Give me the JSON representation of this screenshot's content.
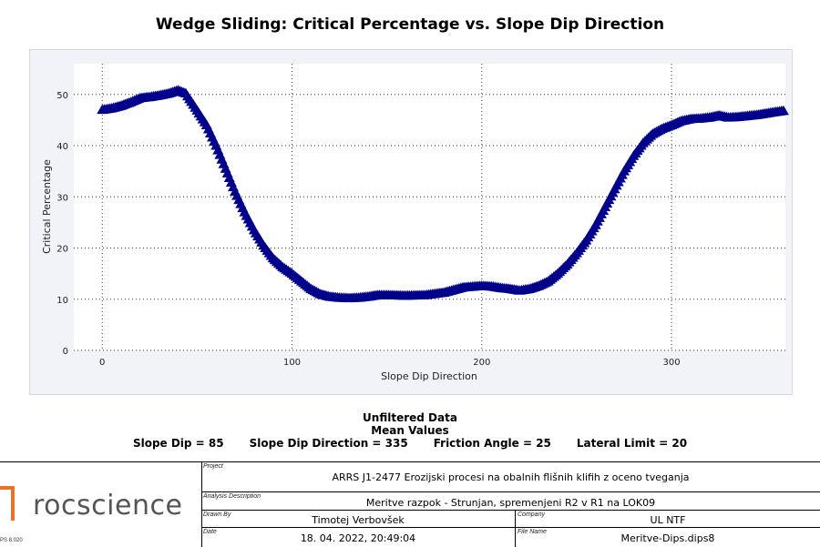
{
  "chart_data": {
    "type": "scatter",
    "title": "Wedge Sliding: Critical Percentage vs. Slope Dip Direction",
    "xlabel": "Slope Dip Direction",
    "ylabel": "Critical Percentage",
    "xlim": [
      -15,
      360
    ],
    "ylim": [
      0,
      56
    ],
    "xticks": [
      0,
      100,
      200,
      300
    ],
    "yticks": [
      0,
      10,
      20,
      30,
      40,
      50
    ],
    "grid": true,
    "marker": "triangle",
    "color": "#00008b",
    "curve": [
      [
        0,
        47
      ],
      [
        5,
        47.3
      ],
      [
        10,
        47.8
      ],
      [
        15,
        48.5
      ],
      [
        20,
        49.3
      ],
      [
        25,
        49.5
      ],
      [
        30,
        49.8
      ],
      [
        35,
        50.2
      ],
      [
        40,
        50.8
      ],
      [
        44,
        50.2
      ],
      [
        48,
        48
      ],
      [
        55,
        44
      ],
      [
        60,
        40
      ],
      [
        65,
        35.5
      ],
      [
        70,
        31
      ],
      [
        75,
        27
      ],
      [
        80,
        23.5
      ],
      [
        85,
        20.5
      ],
      [
        90,
        18
      ],
      [
        95,
        16.3
      ],
      [
        100,
        15
      ],
      [
        105,
        13.5
      ],
      [
        110,
        12
      ],
      [
        115,
        11
      ],
      [
        120,
        10.5
      ],
      [
        125,
        10.3
      ],
      [
        130,
        10.2
      ],
      [
        135,
        10.3
      ],
      [
        140,
        10.5
      ],
      [
        145,
        10.8
      ],
      [
        150,
        10.8
      ],
      [
        160,
        10.7
      ],
      [
        170,
        10.8
      ],
      [
        180,
        11.3
      ],
      [
        185,
        11.8
      ],
      [
        190,
        12.3
      ],
      [
        200,
        12.6
      ],
      [
        205,
        12.5
      ],
      [
        210,
        12.2
      ],
      [
        215,
        12
      ],
      [
        220,
        11.7
      ],
      [
        225,
        12
      ],
      [
        230,
        12.6
      ],
      [
        235,
        13.5
      ],
      [
        240,
        15
      ],
      [
        245,
        16.8
      ],
      [
        250,
        19
      ],
      [
        255,
        21.5
      ],
      [
        260,
        24.5
      ],
      [
        265,
        28
      ],
      [
        270,
        31.5
      ],
      [
        275,
        35
      ],
      [
        280,
        38
      ],
      [
        285,
        40.5
      ],
      [
        290,
        42.3
      ],
      [
        295,
        43.3
      ],
      [
        300,
        44
      ],
      [
        305,
        44.8
      ],
      [
        310,
        45.2
      ],
      [
        315,
        45.3
      ],
      [
        320,
        45.5
      ],
      [
        325,
        45.9
      ],
      [
        330,
        45.5
      ],
      [
        335,
        45.6
      ],
      [
        340,
        45.8
      ],
      [
        345,
        46
      ],
      [
        350,
        46.3
      ],
      [
        355,
        46.6
      ],
      [
        359,
        46.8
      ]
    ]
  },
  "summary": {
    "line1": "Unfiltered Data",
    "line2": "Mean Values",
    "slope_dip": "Slope Dip = 85",
    "slope_dip_direction": "Slope Dip Direction = 335",
    "friction_angle": "Friction Angle = 25",
    "lateral_limit": "Lateral Limit = 20"
  },
  "footer": {
    "logo": "rocscience",
    "version": "PS 8.020",
    "project_label": "Project",
    "project": "ARRS J1-2477 Erozijski procesi na obalnih flišnih klifih z oceno tveganja",
    "analysis_label": "Analysis Description",
    "analysis": "Meritve razpok - Strunjan, spremenjeni R2 v R1 na LOK09",
    "drawn_label": "Drawn By",
    "drawn": "Timotej Verbovšek",
    "company_label": "Company",
    "company": "UL NTF",
    "date_label": "Date",
    "date": "18. 04. 2022, 20:49:04",
    "file_label": "File Name",
    "file": "Meritve-Dips.dips8"
  }
}
